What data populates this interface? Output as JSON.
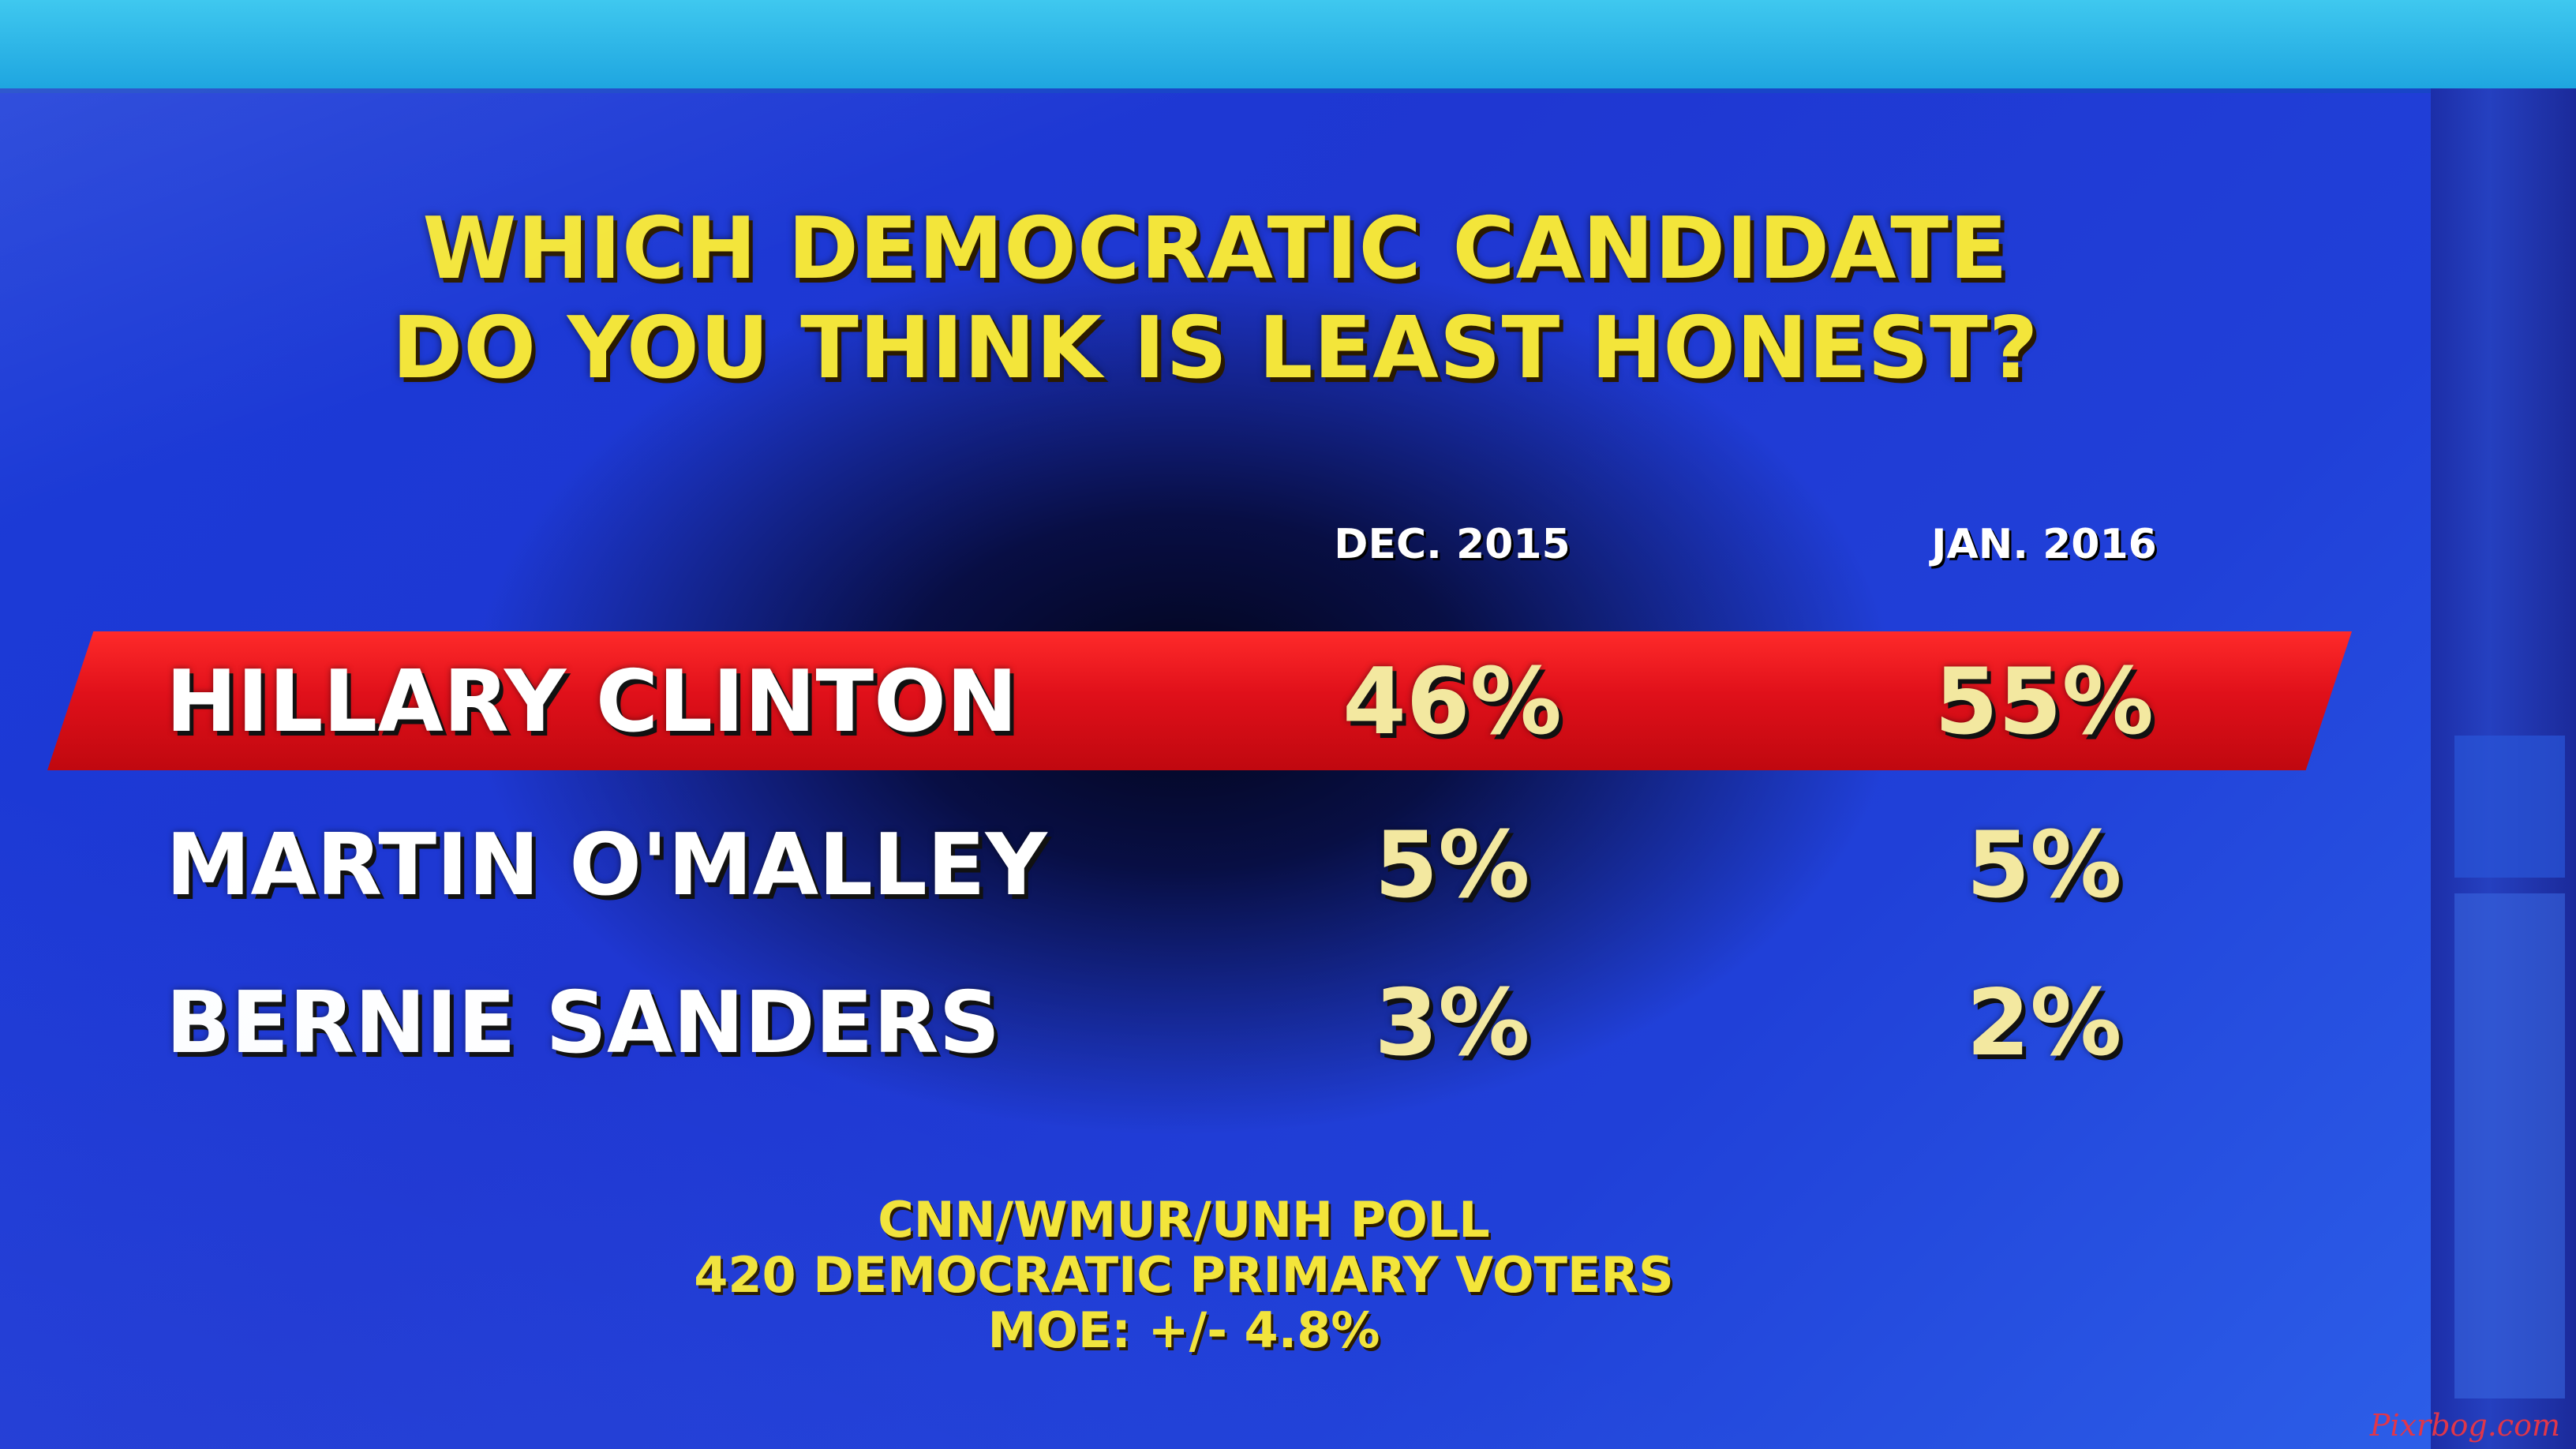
{
  "chart_data": {
    "type": "table",
    "title": "WHICH DEMOCRATIC CANDIDATE DO YOU THINK IS LEAST HONEST?",
    "title_lines": [
      "WHICH DEMOCRATIC CANDIDATE",
      "DO YOU THINK IS LEAST HONEST?"
    ],
    "columns": [
      "DEC. 2015",
      "JAN. 2016"
    ],
    "rows": [
      {
        "name": "HILLARY CLINTON",
        "values": [
          46,
          55
        ],
        "labels": [
          "46%",
          "55%"
        ],
        "highlighted": true
      },
      {
        "name": "MARTIN O'MALLEY",
        "values": [
          5,
          5
        ],
        "labels": [
          "5%",
          "5%"
        ],
        "highlighted": false
      },
      {
        "name": "BERNIE SANDERS",
        "values": [
          3,
          2
        ],
        "labels": [
          "3%",
          "2%"
        ],
        "highlighted": false
      }
    ],
    "footer": [
      "CNN/WMUR/UNH POLL",
      "420 DEMOCRATIC PRIMARY VOTERS",
      "MOE: +/- 4.8%"
    ]
  },
  "colors": {
    "title": "#f3e53a",
    "highlight_bar": "#e0101a",
    "background": "#1f37d2",
    "value_text": "#f3e8a0"
  },
  "watermark": "Pixrbog.com"
}
